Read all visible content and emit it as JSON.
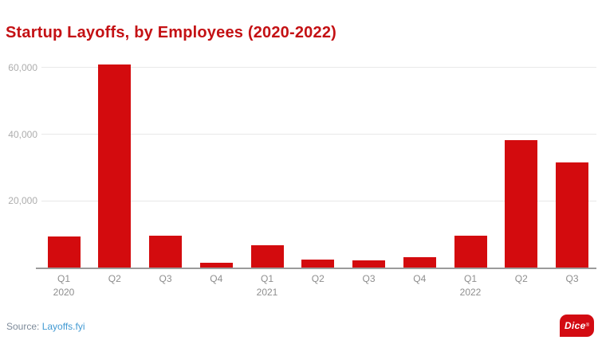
{
  "chart_data": {
    "type": "bar",
    "title": "Startup Layoffs, by Employees (2020-2022)",
    "categories": [
      "Q1 2020",
      "Q2 2020",
      "Q3 2020",
      "Q4 2020",
      "Q1 2021",
      "Q2 2021",
      "Q3 2021",
      "Q4 2021",
      "Q1 2022",
      "Q2 2022",
      "Q3 2022"
    ],
    "x_tick_labels": [
      "Q1",
      "Q2",
      "Q3",
      "Q4",
      "Q1",
      "Q2",
      "Q3",
      "Q4",
      "Q1",
      "Q2",
      "Q3"
    ],
    "year_labels": [
      {
        "text": "2020",
        "index": 0
      },
      {
        "text": "2021",
        "index": 4
      },
      {
        "text": "2022",
        "index": 8
      }
    ],
    "values": [
      9400,
      60900,
      9650,
      1550,
      6650,
      2500,
      2100,
      3200,
      9550,
      38200,
      31550
    ],
    "xlabel": "",
    "ylabel": "",
    "ylim": [
      0,
      62000
    ],
    "yticks": [
      20000,
      40000,
      60000
    ],
    "ytick_labels": [
      "20,000",
      "40,000",
      "60,000"
    ],
    "grid": true,
    "legend": false,
    "bar_color": "#d30b0e",
    "title_color": "#c41114"
  },
  "footer": {
    "source_prefix": "Source: ",
    "source_link": "Layoffs.fyi",
    "logo_text": "Dice",
    "logo_mark": "®"
  }
}
